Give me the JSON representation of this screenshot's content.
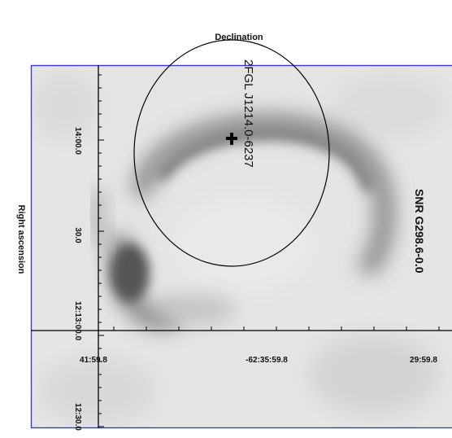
{
  "axes": {
    "top_label": "Declination",
    "left_label": "Right ascension",
    "bottom_ticks": [
      "41:59.8",
      "-62:35:59.8",
      "29:59.8"
    ],
    "left_ticks": [
      "14:00.0",
      "30.0",
      "12:13:00.0",
      "12:30.0"
    ]
  },
  "annotations": {
    "source_name": "2FGL J1214.0-6237",
    "snr_name": "SNR G298.6-0.0"
  },
  "colors": {
    "frame": "#3a3acc",
    "axis": "#000000",
    "background_sky": "#e6e6e6"
  },
  "markers": {
    "source_marker": "plus-cross"
  }
}
